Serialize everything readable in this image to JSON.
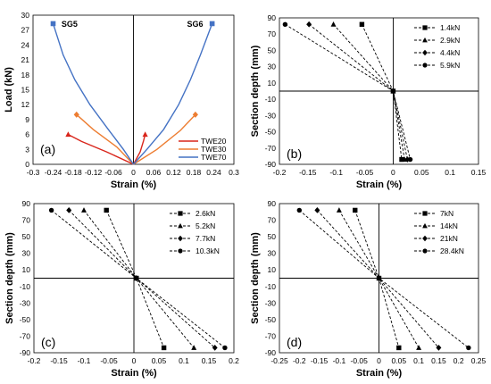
{
  "chart_data": [
    {
      "id": "a",
      "type": "line",
      "panel_label": "(a)",
      "xlabel": "Strain (%)",
      "ylabel": "Load (kN)",
      "xlim": [
        -0.3,
        0.3
      ],
      "ylim": [
        0,
        30
      ],
      "xticks": [
        -0.3,
        -0.24,
        -0.18,
        -0.12,
        -0.06,
        0,
        0.06,
        0.12,
        0.18,
        0.24,
        0.3
      ],
      "xtick_labels": [
        "-0.3",
        "-0.24",
        "-0.18",
        "-0.12",
        "-0.06",
        "0",
        "0.06",
        "0.12",
        "0.18",
        "0.24",
        "0.3"
      ],
      "yticks": [
        0,
        3,
        6,
        9,
        12,
        15,
        18,
        21,
        24,
        27,
        30
      ],
      "ytick_labels": [
        "0",
        "3",
        "6",
        "9",
        "12",
        "15",
        "18",
        "21",
        "24",
        "27",
        "30"
      ],
      "legend_position": "bottom-right",
      "annotations": [
        "SG5",
        "SG6"
      ],
      "series": [
        {
          "name": "TWE20",
          "color": "#d9261c",
          "marker": "triangle",
          "left": [
            [
              0,
              0
            ],
            [
              -0.08,
              2.5
            ],
            [
              -0.155,
              4.6
            ],
            [
              -0.195,
              6.0
            ]
          ],
          "right": [
            [
              0,
              0
            ],
            [
              0.02,
              2.5
            ],
            [
              0.03,
              4.7
            ],
            [
              0.035,
              6.0
            ]
          ]
        },
        {
          "name": "TWE30",
          "color": "#ed7d31",
          "marker": "diamond",
          "left": [
            [
              0,
              0
            ],
            [
              -0.05,
              3.5
            ],
            [
              -0.12,
              7.0
            ],
            [
              -0.17,
              10.0
            ]
          ],
          "right": [
            [
              0,
              0
            ],
            [
              0.07,
              3.0
            ],
            [
              0.14,
              6.8
            ],
            [
              0.185,
              10.0
            ]
          ]
        },
        {
          "name": "TWE70",
          "color": "#4472c4",
          "marker": "square",
          "left": [
            [
              0,
              0
            ],
            [
              -0.03,
              3.0
            ],
            [
              -0.075,
              7.0
            ],
            [
              -0.13,
              12.0
            ],
            [
              -0.175,
              17.0
            ],
            [
              -0.21,
              22.0
            ],
            [
              -0.24,
              28.3
            ]
          ],
          "right": [
            [
              0,
              0
            ],
            [
              0.04,
              3.0
            ],
            [
              0.09,
              7.0
            ],
            [
              0.135,
              12.0
            ],
            [
              0.17,
              17.0
            ],
            [
              0.2,
              22.0
            ],
            [
              0.235,
              28.3
            ]
          ]
        }
      ]
    },
    {
      "id": "b",
      "type": "line",
      "panel_label": "(b)",
      "xlabel": "Strain (%)",
      "ylabel": "Section depth (mm)",
      "xlim": [
        -0.2,
        0.15
      ],
      "ylim": [
        -90,
        90
      ],
      "xticks": [
        -0.2,
        -0.15,
        -0.1,
        -0.05,
        0,
        0.05,
        0.1,
        0.15
      ],
      "xtick_labels": [
        "-0.2",
        "-0.15",
        "-0.1",
        "-0.05",
        "0",
        "0.05",
        "0.1",
        "0.15"
      ],
      "yticks": [
        -90,
        -70,
        -50,
        -30,
        -10,
        10,
        30,
        50,
        70,
        90
      ],
      "ytick_labels": [
        "-90",
        "-70",
        "-50",
        "-30",
        "-10",
        "10",
        "30",
        "50",
        "70",
        "90"
      ],
      "legend_position": "top-right",
      "series": [
        {
          "name": "1.4kN",
          "marker": "square",
          "points": [
            [
              -0.055,
              82
            ],
            [
              0,
              0
            ],
            [
              0.015,
              -84
            ]
          ]
        },
        {
          "name": "2.9kN",
          "marker": "triangle",
          "points": [
            [
              -0.105,
              82
            ],
            [
              0,
              0
            ],
            [
              0.02,
              -84
            ]
          ]
        },
        {
          "name": "4.4kN",
          "marker": "diamond",
          "points": [
            [
              -0.148,
              82
            ],
            [
              0,
              0
            ],
            [
              0.025,
              -84
            ]
          ]
        },
        {
          "name": "5.9kN",
          "marker": "circle",
          "points": [
            [
              -0.19,
              82
            ],
            [
              0,
              0
            ],
            [
              0.03,
              -84
            ]
          ]
        }
      ]
    },
    {
      "id": "c",
      "type": "line",
      "panel_label": "(c)",
      "xlabel": "Strain (%)",
      "ylabel": "Section depth (mm)",
      "xlim": [
        -0.2,
        0.2
      ],
      "ylim": [
        -90,
        90
      ],
      "xticks": [
        -0.2,
        -0.15,
        -0.1,
        -0.05,
        0,
        0.05,
        0.1,
        0.15,
        0.2
      ],
      "xtick_labels": [
        "-0.2",
        "-0.15",
        "-0.1",
        "-0.05",
        "0",
        "0.05",
        "0.1",
        "0.15",
        "0.2"
      ],
      "yticks": [
        -90,
        -70,
        -50,
        -30,
        -10,
        10,
        30,
        50,
        70,
        90
      ],
      "ytick_labels": [
        "-90",
        "-70",
        "-50",
        "-30",
        "-10",
        "10",
        "30",
        "50",
        "70",
        "90"
      ],
      "legend_position": "top-right",
      "series": [
        {
          "name": "2.6kN",
          "marker": "square",
          "points": [
            [
              -0.055,
              82
            ],
            [
              0.005,
              0
            ],
            [
              0.06,
              -84
            ]
          ]
        },
        {
          "name": "5.2kN",
          "marker": "triangle",
          "points": [
            [
              -0.1,
              82
            ],
            [
              0.005,
              0
            ],
            [
              0.12,
              -84
            ]
          ]
        },
        {
          "name": "7.7kN",
          "marker": "diamond",
          "points": [
            [
              -0.13,
              82
            ],
            [
              0.005,
              0
            ],
            [
              0.162,
              -84
            ]
          ]
        },
        {
          "name": "10.3kN",
          "marker": "circle",
          "points": [
            [
              -0.165,
              82
            ],
            [
              0.005,
              0
            ],
            [
              0.182,
              -84
            ]
          ]
        }
      ]
    },
    {
      "id": "d",
      "type": "line",
      "panel_label": "(d)",
      "xlabel": "Strain (%)",
      "ylabel": "Section depth (mm)",
      "xlim": [
        -0.25,
        0.25
      ],
      "ylim": [
        -90,
        90
      ],
      "xticks": [
        -0.25,
        -0.2,
        -0.15,
        -0.1,
        -0.05,
        0,
        0.05,
        0.1,
        0.15,
        0.2,
        0.25
      ],
      "xtick_labels": [
        "-0.25",
        "-0.2",
        "-0.15",
        "-0.1",
        "-0.05",
        "0",
        "0.05",
        "0.1",
        "0.15",
        "0.2",
        "0.25"
      ],
      "yticks": [
        -90,
        -70,
        -50,
        -30,
        -10,
        10,
        30,
        50,
        70,
        90
      ],
      "ytick_labels": [
        "-90",
        "-70",
        "-50",
        "-30",
        "-10",
        "10",
        "30",
        "50",
        "70",
        "90"
      ],
      "legend_position": "top-right",
      "series": [
        {
          "name": "7kN",
          "marker": "square",
          "points": [
            [
              -0.06,
              82
            ],
            [
              0,
              0
            ],
            [
              0.05,
              -84
            ]
          ]
        },
        {
          "name": "14kN",
          "marker": "triangle",
          "points": [
            [
              -0.1,
              82
            ],
            [
              0,
              0
            ],
            [
              0.1,
              -84
            ]
          ]
        },
        {
          "name": "21kN",
          "marker": "diamond",
          "points": [
            [
              -0.155,
              82
            ],
            [
              0,
              0
            ],
            [
              0.15,
              -84
            ]
          ]
        },
        {
          "name": "28.4kN",
          "marker": "circle",
          "points": [
            [
              -0.2,
              82
            ],
            [
              0,
              0
            ],
            [
              0.225,
              -84
            ]
          ]
        }
      ]
    }
  ]
}
